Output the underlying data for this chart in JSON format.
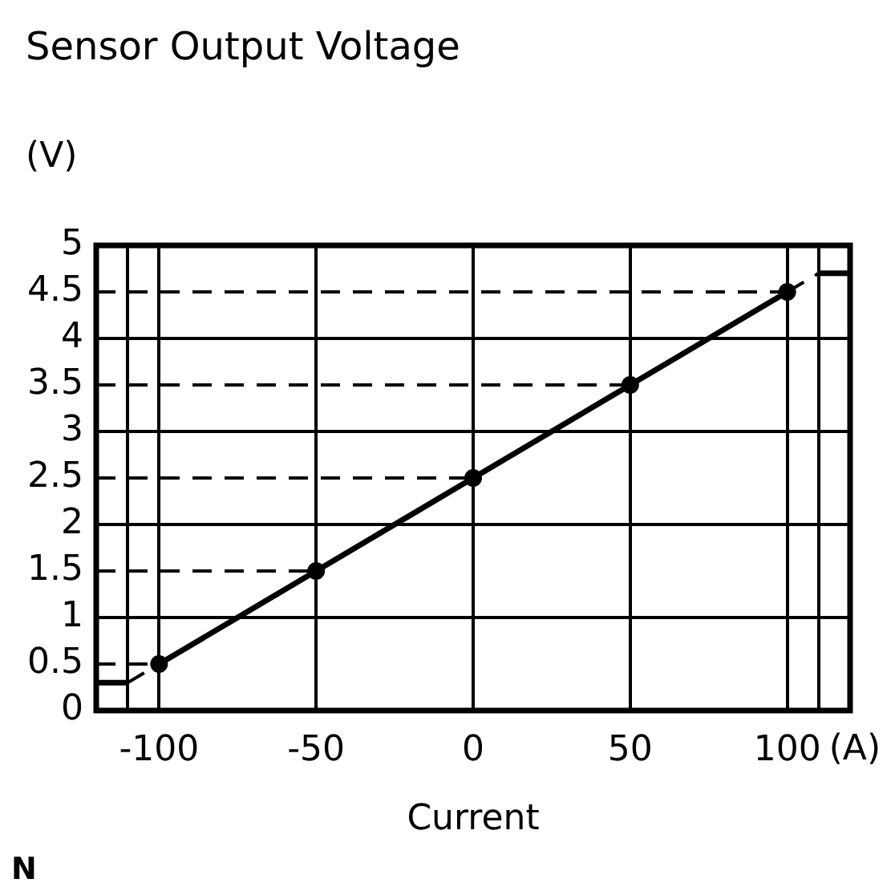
{
  "chart_data": {
    "type": "line",
    "title": "Sensor Output Voltage",
    "xlabel": "Current",
    "ylabel": "(V)",
    "annotations": [
      "(A)",
      "N"
    ],
    "xlim": [
      -120,
      120
    ],
    "xticks": [
      {
        "value": -110,
        "label": null
      },
      -100,
      -50,
      0,
      50,
      100,
      {
        "value": 110,
        "label": null
      }
    ],
    "ylim": [
      0,
      5
    ],
    "yticks": [
      0,
      0.5,
      1,
      1.5,
      2,
      2.5,
      3,
      3.5,
      4,
      4.5,
      5
    ],
    "grid": "x",
    "ref_lines": [
      {
        "axis": "y",
        "value": 1
      },
      {
        "axis": "y",
        "value": 2
      },
      {
        "axis": "y",
        "value": 3
      },
      {
        "axis": "y",
        "value": 4
      }
    ],
    "series": [
      {
        "color": "#000000",
        "marker": "circle",
        "line_style": "solid",
        "x": [
          -100,
          -50,
          0,
          50,
          100
        ],
        "values": [
          0.5,
          1.5,
          2.5,
          3.5,
          4.5
        ]
      },
      {
        "color": "#000000",
        "marker": "none",
        "line_style": "solid",
        "x": [
          -120,
          -110
        ],
        "values": [
          0.3,
          0.3
        ]
      },
      {
        "color": "#000000",
        "marker": "none",
        "line_style": "dashed",
        "x": [
          -110,
          -100
        ],
        "values": [
          0.3,
          0.5
        ]
      },
      {
        "color": "#000000",
        "marker": "none",
        "line_style": "dashed",
        "x": [
          100,
          110
        ],
        "values": [
          4.5,
          4.7
        ]
      },
      {
        "color": "#000000",
        "marker": "none",
        "line_style": "solid",
        "x": [
          110,
          120
        ],
        "values": [
          4.7,
          4.7
        ]
      },
      {
        "color": "#000000",
        "marker": "none",
        "line_style": "dashed",
        "x": [
          -120,
          -100
        ],
        "values": [
          0.5,
          0.5
        ]
      },
      {
        "color": "#000000",
        "marker": "none",
        "line_style": "dashed",
        "x": [
          -120,
          -50
        ],
        "values": [
          1.5,
          1.5
        ]
      },
      {
        "color": "#000000",
        "marker": "none",
        "line_style": "dashed",
        "x": [
          -120,
          0
        ],
        "values": [
          2.5,
          2.5
        ]
      },
      {
        "color": "#000000",
        "marker": "none",
        "line_style": "dashed",
        "x": [
          -120,
          50
        ],
        "values": [
          3.5,
          3.5
        ]
      },
      {
        "color": "#000000",
        "marker": "none",
        "line_style": "dashed",
        "x": [
          -120,
          100
        ],
        "values": [
          4.5,
          4.5
        ]
      }
    ]
  }
}
